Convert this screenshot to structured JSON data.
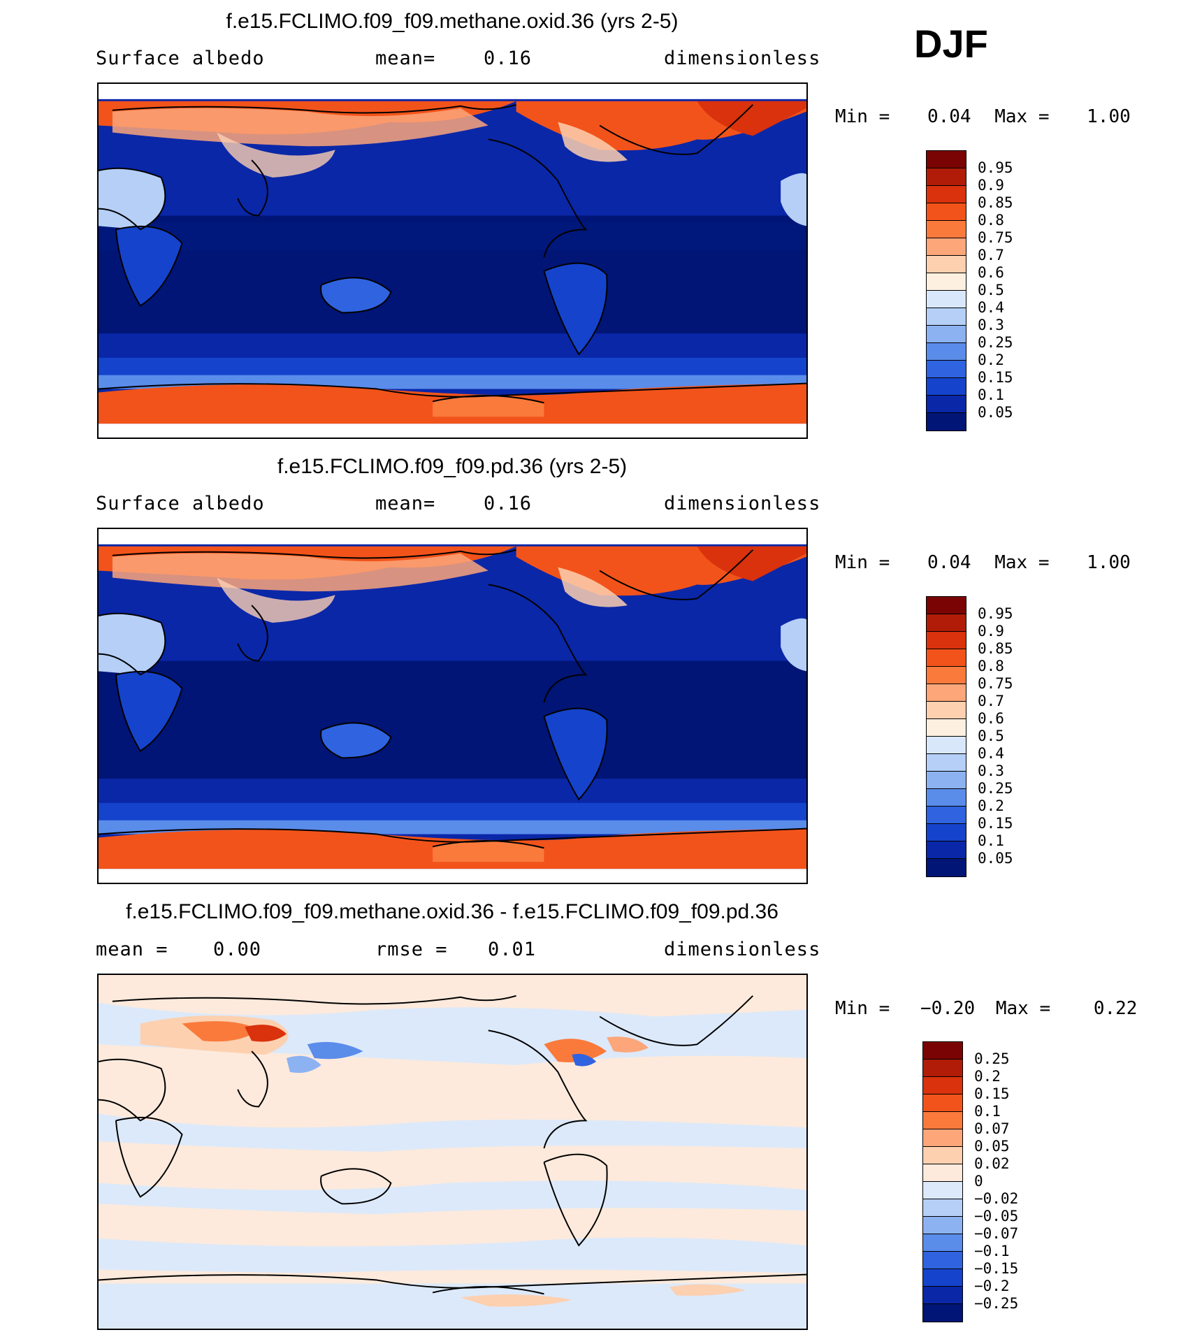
{
  "season": "DJF",
  "panels": [
    {
      "title": "f.e15.FCLIMO.f09_f09.methane.oxid.36 (yrs 2-5)",
      "left_label": "Surface albedo",
      "mid_label": "mean=",
      "mid_value": "0.16",
      "right_label": "dimensionless",
      "min_label": "Min =",
      "min_value": "0.04",
      "max_label": "Max =",
      "max_value": "1.00",
      "colorbar": {
        "colors": [
          "#7a0403",
          "#b01c08",
          "#d9320c",
          "#f2531a",
          "#fa7a3c",
          "#fca67a",
          "#fdd0b0",
          "#fdf0e0",
          "#d8e8fa",
          "#b5cff7",
          "#8cb2f2",
          "#5a8cea",
          "#2f63df",
          "#1543cc",
          "#0a27a8",
          "#001575"
        ],
        "labels": [
          "0.95",
          "0.9",
          "0.85",
          "0.8",
          "0.75",
          "0.7",
          "0.6",
          "0.5",
          "0.4",
          "0.3",
          "0.25",
          "0.2",
          "0.15",
          "0.1",
          "0.05"
        ]
      }
    },
    {
      "title": "f.e15.FCLIMO.f09_f09.pd.36 (yrs 2-5)",
      "left_label": "Surface albedo",
      "mid_label": "mean=",
      "mid_value": "0.16",
      "right_label": "dimensionless",
      "min_label": "Min =",
      "min_value": "0.04",
      "max_label": "Max =",
      "max_value": "1.00",
      "colorbar": {
        "colors": [
          "#7a0403",
          "#b01c08",
          "#d9320c",
          "#f2531a",
          "#fa7a3c",
          "#fca67a",
          "#fdd0b0",
          "#fdf0e0",
          "#d8e8fa",
          "#b5cff7",
          "#8cb2f2",
          "#5a8cea",
          "#2f63df",
          "#1543cc",
          "#0a27a8",
          "#001575"
        ],
        "labels": [
          "0.95",
          "0.9",
          "0.85",
          "0.8",
          "0.75",
          "0.7",
          "0.6",
          "0.5",
          "0.4",
          "0.3",
          "0.25",
          "0.2",
          "0.15",
          "0.1",
          "0.05"
        ]
      }
    },
    {
      "title": "f.e15.FCLIMO.f09_f09.methane.oxid.36 - f.e15.FCLIMO.f09_f09.pd.36",
      "left_label": "mean =",
      "left_value": "0.00",
      "mid_label": "rmse =",
      "mid_value": "0.01",
      "right_label": "dimensionless",
      "min_label": "Min =",
      "min_value": "−0.20",
      "max_label": "Max =",
      "max_value": "0.22",
      "colorbar": {
        "colors": [
          "#7a0403",
          "#b01c08",
          "#d9320c",
          "#f2531a",
          "#fa7a3c",
          "#fca67a",
          "#fdd0b0",
          "#fdeadc",
          "#dce9fa",
          "#b5cff7",
          "#8cb2f2",
          "#5a8cea",
          "#2f63df",
          "#1543cc",
          "#0a27a8",
          "#001575"
        ],
        "labels": [
          "0.25",
          "0.2",
          "0.15",
          "0.1",
          "0.07",
          "0.05",
          "0.02",
          "0",
          "−0.02",
          "−0.05",
          "−0.07",
          "−0.1",
          "−0.15",
          "−0.2",
          "−0.25"
        ]
      }
    }
  ]
}
